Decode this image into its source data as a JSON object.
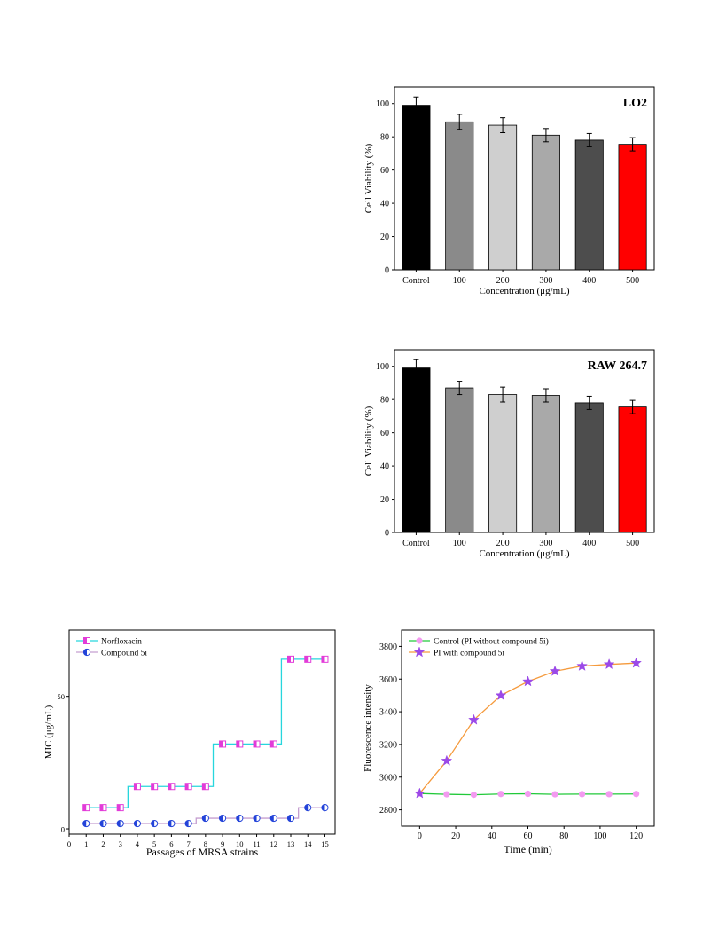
{
  "chart_data": [
    {
      "type": "bar",
      "panel": "LO2",
      "title": "LO2",
      "categories": [
        "Control",
        "100",
        "200",
        "300",
        "400",
        "500"
      ],
      "values": [
        99,
        89,
        87,
        81,
        78,
        75.5
      ],
      "errors": [
        5,
        4.5,
        4.5,
        4,
        4,
        4
      ],
      "colors": [
        "#000000",
        "#8a8a8a",
        "#cfcfcf",
        "#a9a9a9",
        "#4d4d4d",
        "#ff0000"
      ],
      "xlabel": "Concentration (μg/mL)",
      "ylabel": "Cell Viability (%)",
      "ylim": [
        0,
        110
      ],
      "yticks": [
        0,
        20,
        40,
        60,
        80,
        100
      ]
    },
    {
      "type": "bar",
      "panel": "RAW 264.7",
      "title": "RAW 264.7",
      "categories": [
        "Control",
        "100",
        "200",
        "300",
        "400",
        "500"
      ],
      "values": [
        99,
        87,
        83,
        82.5,
        78,
        75.5
      ],
      "errors": [
        5,
        4,
        4.5,
        4,
        4,
        4
      ],
      "colors": [
        "#000000",
        "#8a8a8a",
        "#cfcfcf",
        "#a9a9a9",
        "#4d4d4d",
        "#ff0000"
      ],
      "xlabel": "Concentration (μg/mL)",
      "ylabel": "Cell Viability (%)",
      "ylim": [
        0,
        110
      ],
      "yticks": [
        0,
        20,
        40,
        60,
        80,
        100
      ]
    },
    {
      "type": "line",
      "panel": "MIC",
      "xlabel": "Passages of MRSA strains",
      "ylabel": "MIC (μg/mL)",
      "xlim": [
        0,
        15.6
      ],
      "ylim": [
        -2,
        75
      ],
      "xticks": [
        0,
        1,
        2,
        3,
        4,
        5,
        6,
        7,
        8,
        9,
        10,
        11,
        12,
        13,
        14,
        15
      ],
      "yticks": [
        0,
        50
      ],
      "x": [
        1,
        2,
        3,
        4,
        5,
        6,
        7,
        8,
        9,
        10,
        11,
        12,
        13,
        14,
        15
      ],
      "series": [
        {
          "name": "Norfloxacin",
          "values": [
            8,
            8,
            8,
            16,
            16,
            16,
            16,
            16,
            32,
            32,
            32,
            32,
            64,
            64,
            64
          ],
          "color": "#27d6dd",
          "marker": "half-square",
          "marker_color": "#e23bd8"
        },
        {
          "name": "Compound 5i",
          "values": [
            2,
            2,
            2,
            2,
            2,
            2,
            2,
            4,
            4,
            4,
            4,
            4,
            4,
            8,
            8
          ],
          "color": "#c59fd0",
          "marker": "half-circle",
          "marker_color": "#2343d9"
        }
      ],
      "legend": "top-left"
    },
    {
      "type": "line",
      "panel": "Fluorescence",
      "xlabel": "Time (min)",
      "ylabel": "Fluorescence intensity",
      "xlim": [
        -10,
        130
      ],
      "ylim": [
        2700,
        3900
      ],
      "xticks": [
        0,
        20,
        40,
        60,
        80,
        100,
        120
      ],
      "yticks": [
        2800,
        3000,
        3200,
        3400,
        3600,
        3800
      ],
      "x": [
        0,
        15,
        30,
        45,
        60,
        75,
        90,
        105,
        120
      ],
      "series": [
        {
          "name": "Control (PI without compound 5i)",
          "values": [
            2900,
            2895,
            2892,
            2897,
            2898,
            2895,
            2896,
            2896,
            2897
          ],
          "color": "#22c93a",
          "marker": "circle",
          "marker_color": "#f39af0"
        },
        {
          "name": "PI with compound 5i",
          "values": [
            2900,
            3100,
            3350,
            3500,
            3585,
            3648,
            3680,
            3690,
            3698
          ],
          "color": "#f59a3c",
          "marker": "star",
          "marker_color": "#9b49e8"
        }
      ],
      "legend": "top-left"
    }
  ]
}
